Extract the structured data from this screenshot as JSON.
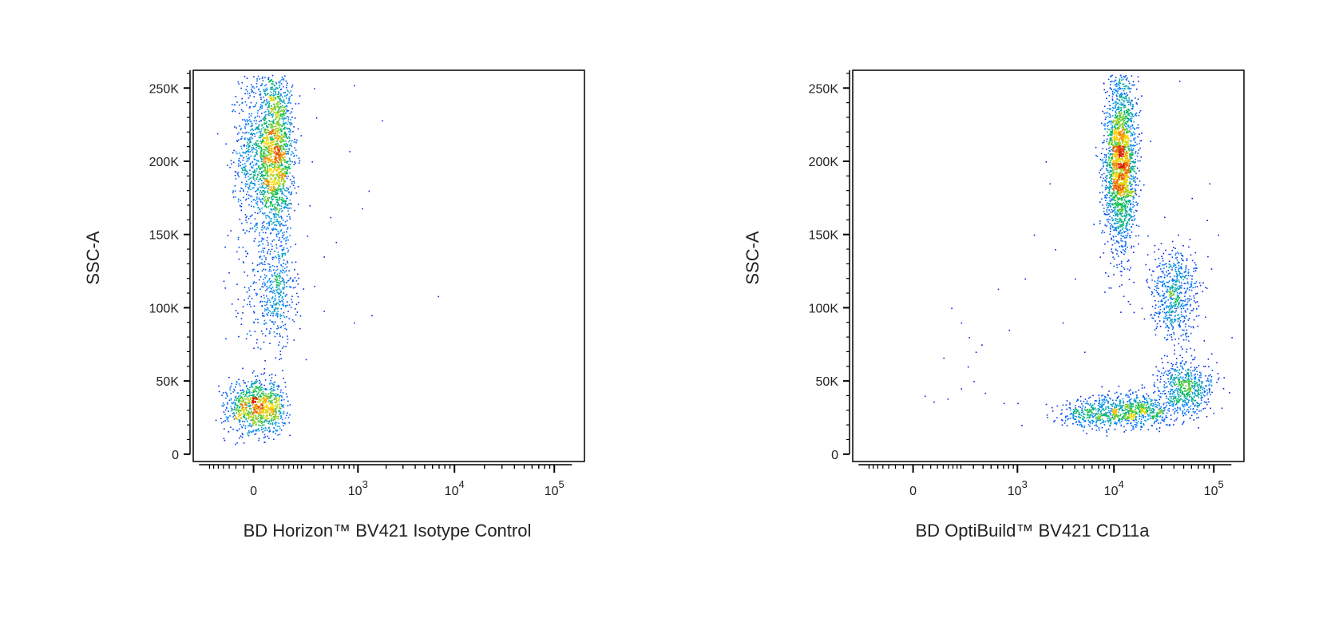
{
  "colors": {
    "density_low": "#0000dd",
    "density_mid": "#00bb44",
    "density_high": "#ffdd00",
    "density_peak": "#dd1100",
    "frame": "#000000"
  },
  "chart_data": [
    {
      "type": "scatter",
      "title": "",
      "xlabel": "BD Horizon™ BV421 Isotype Control",
      "ylabel": "SSC-A",
      "x_scale": "biexponential",
      "y_scale": "linear",
      "xlim": [
        -300,
        200000
      ],
      "ylim": [
        -5000,
        262144
      ],
      "y_ticks": [
        {
          "value": 0,
          "label": "0"
        },
        {
          "value": 50000,
          "label": "50K"
        },
        {
          "value": 100000,
          "label": "100K"
        },
        {
          "value": 150000,
          "label": "150K"
        },
        {
          "value": 200000,
          "label": "200K"
        },
        {
          "value": 250000,
          "label": "250K"
        }
      ],
      "x_ticks": [
        {
          "value": 0,
          "label": "0",
          "exp": ""
        },
        {
          "value": 1000,
          "label": "10",
          "exp": "3"
        },
        {
          "value": 10000,
          "label": "10",
          "exp": "4"
        },
        {
          "value": 100000,
          "label": "10",
          "exp": "5"
        }
      ],
      "populations": [
        {
          "name": "",
          "x_center": 50,
          "x_spread": 45,
          "y_center": 205000,
          "y_spread": 30000,
          "count": 2200
        },
        {
          "name": "",
          "x_center": 60,
          "x_spread": 50,
          "y_center": 110000,
          "y_spread": 18000,
          "count": 450
        },
        {
          "name": "",
          "x_center": 10,
          "x_spread": 45,
          "y_center": 32000,
          "y_spread": 9000,
          "count": 1000
        }
      ],
      "outliers": [
        [
          300,
          250000
        ],
        [
          320,
          230000
        ],
        [
          280,
          200000
        ],
        [
          260,
          170000
        ],
        [
          900,
          252000
        ],
        [
          1800,
          228000
        ],
        [
          800,
          207000
        ],
        [
          1300,
          180000
        ],
        [
          1100,
          168000
        ],
        [
          480,
          162000
        ],
        [
          560,
          145000
        ],
        [
          400,
          135000
        ],
        [
          300,
          115000
        ],
        [
          400,
          98000
        ],
        [
          900,
          90000
        ],
        [
          1400,
          95000
        ],
        [
          6800,
          108000
        ],
        [
          230,
          65000
        ]
      ]
    },
    {
      "type": "scatter",
      "title": "",
      "xlabel": "BD OptiBuild™ BV421 CD11a",
      "ylabel": "SSC-A",
      "x_scale": "biexponential",
      "y_scale": "linear",
      "xlim": [
        -300,
        200000
      ],
      "ylim": [
        -5000,
        262144
      ],
      "y_ticks": [
        {
          "value": 0,
          "label": "0"
        },
        {
          "value": 50000,
          "label": "50K"
        },
        {
          "value": 100000,
          "label": "100K"
        },
        {
          "value": 150000,
          "label": "150K"
        },
        {
          "value": 200000,
          "label": "200K"
        },
        {
          "value": 250000,
          "label": "250K"
        }
      ],
      "x_ticks": [
        {
          "value": 0,
          "label": "0",
          "exp": ""
        },
        {
          "value": 1000,
          "label": "10",
          "exp": "3"
        },
        {
          "value": 10000,
          "label": "10",
          "exp": "4"
        },
        {
          "value": 100000,
          "label": "10",
          "exp": "5"
        }
      ],
      "populations": [
        {
          "name": "",
          "x_center": 11500,
          "x_spread_log": 0.08,
          "y_center": 200000,
          "y_spread": 30000,
          "count": 2200
        },
        {
          "name": "",
          "x_center": 40000,
          "x_spread_log": 0.12,
          "y_center": 110000,
          "y_spread": 16000,
          "count": 600
        },
        {
          "name": "",
          "x_center": 15000,
          "x_spread_log": 0.22,
          "y_center": 30000,
          "y_spread": 6000,
          "count": 650
        },
        {
          "name": "",
          "x_center": 50000,
          "x_spread_log": 0.14,
          "y_center": 45000,
          "y_spread": 9000,
          "count": 600
        },
        {
          "name": "",
          "x_center": 6000,
          "x_spread_log": 0.18,
          "y_center": 28000,
          "y_spread": 5000,
          "count": 300
        }
      ],
      "outliers": [
        [
          30,
          40000
        ],
        [
          60,
          36000
        ],
        [
          100,
          66000
        ],
        [
          140,
          100000
        ],
        [
          200,
          90000
        ],
        [
          260,
          80000
        ],
        [
          320,
          70000
        ],
        [
          380,
          75000
        ],
        [
          250,
          60000
        ],
        [
          300,
          50000
        ],
        [
          200,
          45000
        ],
        [
          420,
          42000
        ],
        [
          600,
          113000
        ],
        [
          800,
          85000
        ],
        [
          1200,
          120000
        ],
        [
          1500,
          150000
        ],
        [
          2000,
          200000
        ],
        [
          2200,
          185000
        ],
        [
          4000,
          120000
        ],
        [
          3000,
          90000
        ],
        [
          5000,
          70000
        ],
        [
          1000,
          35000
        ],
        [
          1100,
          20000
        ],
        [
          60000,
          175000
        ],
        [
          85000,
          160000
        ],
        [
          110000,
          150000
        ],
        [
          90000,
          185000
        ],
        [
          45000,
          255000
        ],
        [
          70000,
          95000
        ],
        [
          150000,
          80000
        ],
        [
          2500,
          140000
        ],
        [
          700,
          35000
        ],
        [
          120,
          38000
        ]
      ]
    }
  ]
}
